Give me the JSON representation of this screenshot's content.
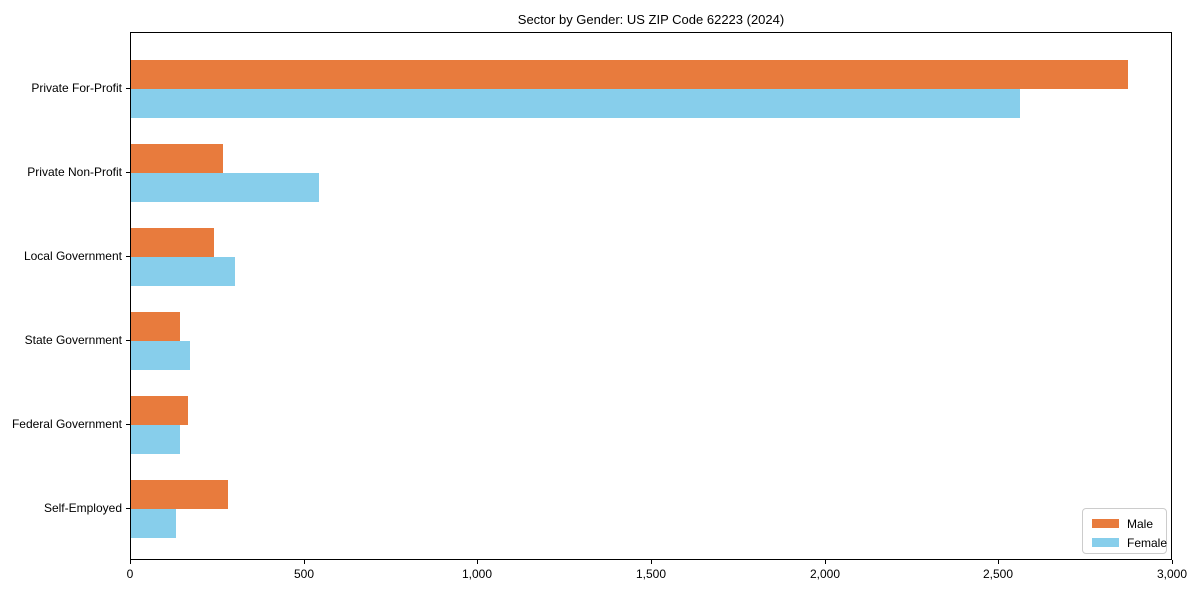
{
  "chart_data": {
    "type": "bar",
    "orientation": "horizontal",
    "title": "Sector by Gender: US ZIP Code 62223 (2024)",
    "categories": [
      "Private For-Profit",
      "Private Non-Profit",
      "Local Government",
      "State Government",
      "Federal Government",
      "Self-Employed"
    ],
    "series": [
      {
        "name": "Male",
        "color": "#e87b3d",
        "values": [
          2870,
          265,
          240,
          140,
          165,
          280
        ]
      },
      {
        "name": "Female",
        "color": "#87ceeb",
        "values": [
          2560,
          540,
          300,
          170,
          140,
          130
        ]
      }
    ],
    "xlabel": "",
    "ylabel": "",
    "xlim": [
      0,
      3000
    ],
    "xticks": {
      "values": [
        0,
        500,
        1000,
        1500,
        2000,
        2500,
        3000
      ],
      "labels": [
        "0",
        "500",
        "1,000",
        "1,500",
        "2,000",
        "2,500",
        "3,000"
      ]
    },
    "grid": false,
    "legend_position": "lower right",
    "plot_border_color": "#000000",
    "background_color": "#ffffff"
  }
}
